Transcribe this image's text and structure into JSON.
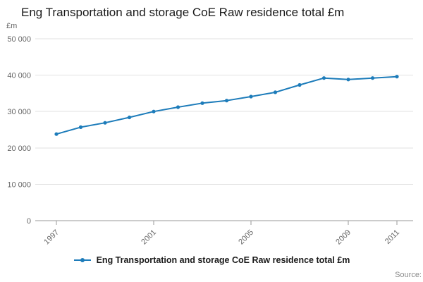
{
  "footer": {
    "source": "Source:"
  },
  "colors": {
    "line": "#1d7cba",
    "gridline": "#e2e2e2",
    "axis_line": "#999999",
    "tick_text": "#666666"
  },
  "chart_data": {
    "type": "line",
    "title": "Eng Transportation and storage CoE Raw residence total £m",
    "ylabel": "£m",
    "xlabel": "",
    "x": [
      1997,
      1998,
      1999,
      2000,
      2001,
      2002,
      2003,
      2004,
      2005,
      2006,
      2007,
      2008,
      2009,
      2010,
      2011
    ],
    "series": [
      {
        "name": "Eng Transportation and storage CoE Raw residence total £m",
        "color": "#1d7cba",
        "values": [
          23800,
          25700,
          26900,
          28400,
          30000,
          31200,
          32300,
          33000,
          34100,
          35300,
          37300,
          39200,
          38800,
          39200,
          39600
        ]
      }
    ],
    "ylim": [
      0,
      50000
    ],
    "yticks": [
      0,
      10000,
      20000,
      30000,
      40000,
      50000
    ],
    "ytick_labels": [
      "0",
      "10 000",
      "20 000",
      "30 000",
      "40 000",
      "50 000"
    ],
    "xticks": [
      1997,
      2001,
      2005,
      2009,
      2011
    ],
    "xtick_labels": [
      "1997",
      "2001",
      "2005",
      "2009",
      "2011"
    ],
    "grid": "horizontal",
    "legend_position": "bottom",
    "marker": "circle"
  }
}
